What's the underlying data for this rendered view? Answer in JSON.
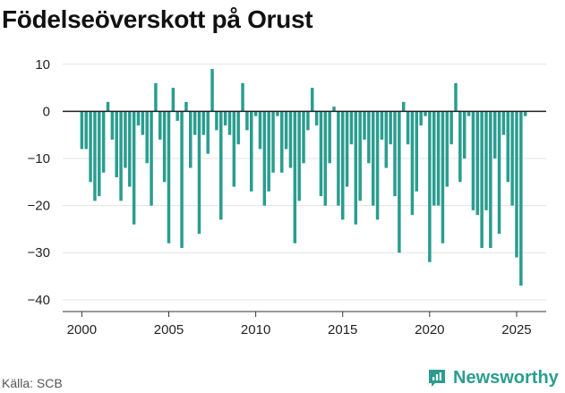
{
  "title": "Födelseöverskott på Orust",
  "source": "Källa: SCB",
  "brand": {
    "name": "Newsworthy",
    "icon": "newsworthy-logo-icon",
    "color": "#2a9d8f"
  },
  "chart_data": {
    "type": "bar",
    "title": "Födelseöverskott på Orust",
    "xlabel": "",
    "ylabel": "",
    "bar_color": "#2a9d8f",
    "grid": true,
    "zero_line_color": "#222222",
    "xlim": [
      1998.9,
      2026.7
    ],
    "ylim": [
      -42.5,
      13
    ],
    "x_ticks": [
      2000,
      2005,
      2010,
      2015,
      2020,
      2025
    ],
    "y_ticks": [
      10,
      0,
      -10,
      -20,
      -30,
      -40
    ],
    "y_tick_labels": [
      "10",
      "0",
      "−10",
      "−20",
      "−30",
      "−40"
    ],
    "frequency": "quarterly",
    "start": 2000.0,
    "values": [
      -8,
      -8,
      -15,
      -19,
      -18,
      -13,
      2,
      -6,
      -14,
      -19,
      -12,
      -16,
      -24,
      -3,
      -5,
      -11,
      -20,
      6,
      -6,
      -15,
      -28,
      5,
      -2,
      -29,
      2,
      -12,
      -5,
      -26,
      -5,
      -9,
      9,
      -4,
      -23,
      -3,
      -5,
      -16,
      -7,
      6,
      -4,
      -17,
      -1,
      -8,
      -20,
      -17,
      -13,
      -1,
      -13,
      -8,
      -12,
      -28,
      -19,
      -11,
      -4,
      5,
      -3,
      -18,
      -20,
      -11,
      1,
      -20,
      -23,
      -16,
      -7,
      -24,
      -19,
      -6,
      -11,
      -20,
      -23,
      -6,
      -12,
      -7,
      -18,
      -30,
      2,
      -7,
      -22,
      -17,
      -3,
      -1,
      -32,
      -20,
      -20,
      -28,
      -16,
      -7,
      6,
      -15,
      -10,
      -1,
      -21,
      -22,
      -29,
      -21,
      -29,
      -10,
      -26,
      -5,
      -15,
      -20,
      -31,
      -37,
      -1
    ]
  }
}
